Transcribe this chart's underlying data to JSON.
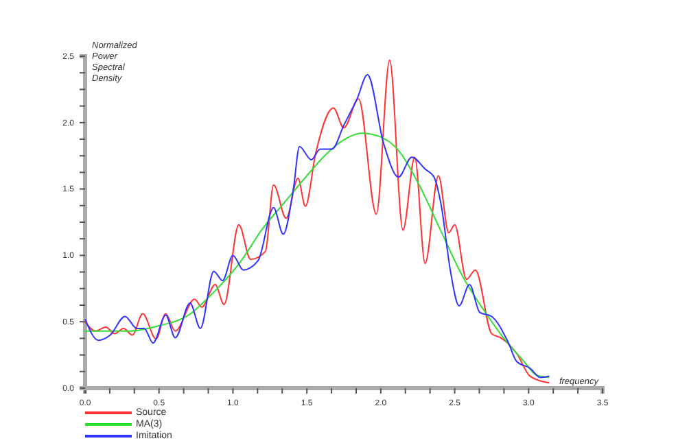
{
  "chart_data": {
    "type": "line",
    "xlabel": "frequency",
    "ylabel": "Normalized Power Spectral Density",
    "xlim": [
      0,
      3.5
    ],
    "ylim": [
      0,
      2.5
    ],
    "xticks": [
      {
        "value": 0,
        "label": "0.0"
      },
      {
        "value": 0.1667,
        "label": null
      },
      {
        "value": 0.3333,
        "label": null
      },
      {
        "value": 0.5,
        "label": "0.5"
      },
      {
        "value": 0.6667,
        "label": null
      },
      {
        "value": 0.8333,
        "label": null
      },
      {
        "value": 1,
        "label": "1.0"
      },
      {
        "value": 1.1667,
        "label": null
      },
      {
        "value": 1.3333,
        "label": null
      },
      {
        "value": 1.5,
        "label": "1.5"
      },
      {
        "value": 1.6667,
        "label": null
      },
      {
        "value": 1.8333,
        "label": null
      },
      {
        "value": 2,
        "label": "2.0"
      },
      {
        "value": 2.1667,
        "label": null
      },
      {
        "value": 2.3333,
        "label": null
      },
      {
        "value": 2.5,
        "label": "2.5"
      },
      {
        "value": 2.6667,
        "label": null
      },
      {
        "value": 2.8333,
        "label": null
      },
      {
        "value": 3,
        "label": "3.0"
      },
      {
        "value": 3.1667,
        "label": null
      },
      {
        "value": 3.3333,
        "label": null
      },
      {
        "value": 3.5,
        "label": "3.5"
      }
    ],
    "yticks": [
      {
        "value": 0,
        "label": "0.0"
      },
      {
        "value": 0.125,
        "label": null
      },
      {
        "value": 0.25,
        "label": null
      },
      {
        "value": 0.375,
        "label": null
      },
      {
        "value": 0.5,
        "label": "0.5"
      },
      {
        "value": 0.625,
        "label": null
      },
      {
        "value": 0.75,
        "label": null
      },
      {
        "value": 0.875,
        "label": null
      },
      {
        "value": 1,
        "label": "1.0"
      },
      {
        "value": 1.125,
        "label": null
      },
      {
        "value": 1.25,
        "label": null
      },
      {
        "value": 1.375,
        "label": null
      },
      {
        "value": 1.5,
        "label": "1.5"
      },
      {
        "value": 1.625,
        "label": null
      },
      {
        "value": 1.75,
        "label": null
      },
      {
        "value": 1.875,
        "label": null
      },
      {
        "value": 2,
        "label": "2.0"
      },
      {
        "value": 2.125,
        "label": null
      },
      {
        "value": 2.25,
        "label": null
      },
      {
        "value": 2.375,
        "label": null
      },
      {
        "value": 2.5,
        "label": "2.5"
      }
    ],
    "grid": false,
    "legend": "bottom left",
    "line_style": "solid",
    "series": [
      {
        "name": "Source",
        "color": "#ff3333",
        "x": [
          0,
          0.07,
          0.14,
          0.2,
          0.26,
          0.32,
          0.39,
          0.48,
          0.545,
          0.61,
          0.74,
          0.79,
          0.88,
          0.94,
          1.04,
          1.12,
          1.22,
          1.275,
          1.36,
          1.44,
          1.49,
          1.56,
          1.68,
          1.75,
          1.85,
          1.97,
          2.06,
          2.15,
          2.23,
          2.3,
          2.39,
          2.46,
          2.5,
          2.58,
          2.64,
          2.75,
          2.81,
          2.92,
          3.01,
          3.14
        ],
        "values": [
          0.5,
          0.43,
          0.46,
          0.41,
          0.45,
          0.4,
          0.56,
          0.37,
          0.56,
          0.43,
          0.67,
          0.61,
          0.78,
          0.63,
          1.23,
          0.97,
          1.03,
          1.53,
          1.28,
          1.58,
          1.37,
          1.77,
          2.11,
          1.96,
          2.18,
          1.31,
          2.47,
          1.19,
          1.74,
          0.94,
          1.6,
          1.17,
          1.23,
          0.82,
          0.89,
          0.41,
          0.38,
          0.26,
          0.09,
          0.04
        ]
      },
      {
        "name": "MA(3)",
        "color": "#33dd33",
        "x": [
          0,
          0.3,
          0.5,
          0.7,
          0.85,
          1.05,
          1.2,
          1.35,
          1.5,
          1.62,
          1.75,
          1.87,
          1.98,
          2.12,
          2.26,
          2.4,
          2.55,
          2.72,
          2.85,
          2.97,
          3.05,
          3.14
        ],
        "values": [
          0.43,
          0.43,
          0.47,
          0.55,
          0.7,
          0.95,
          1.2,
          1.4,
          1.6,
          1.75,
          1.87,
          1.92,
          1.9,
          1.79,
          1.53,
          1.2,
          0.85,
          0.55,
          0.35,
          0.2,
          0.1,
          0.08
        ]
      },
      {
        "name": "Imitation",
        "color": "#3333ff",
        "x": [
          0,
          0.09,
          0.17,
          0.27,
          0.35,
          0.4,
          0.46,
          0.545,
          0.61,
          0.71,
          0.78,
          0.87,
          0.93,
          1.0,
          1.07,
          1.17,
          1.275,
          1.34,
          1.41,
          1.45,
          1.53,
          1.59,
          1.67,
          1.75,
          1.84,
          1.91,
          2.02,
          2.12,
          2.21,
          2.3,
          2.36,
          2.41,
          2.47,
          2.53,
          2.6,
          2.67,
          2.75,
          2.86,
          2.92,
          3.01,
          3.08,
          3.14
        ],
        "values": [
          0.52,
          0.36,
          0.4,
          0.54,
          0.45,
          0.45,
          0.34,
          0.55,
          0.38,
          0.64,
          0.45,
          0.88,
          0.81,
          1.0,
          0.89,
          0.96,
          1.36,
          1.16,
          1.51,
          1.82,
          1.72,
          1.8,
          1.8,
          1.98,
          2.18,
          2.36,
          1.84,
          1.59,
          1.74,
          1.65,
          1.59,
          1.37,
          0.89,
          0.62,
          0.78,
          0.57,
          0.54,
          0.35,
          0.2,
          0.15,
          0.08,
          0.09
        ]
      }
    ]
  }
}
